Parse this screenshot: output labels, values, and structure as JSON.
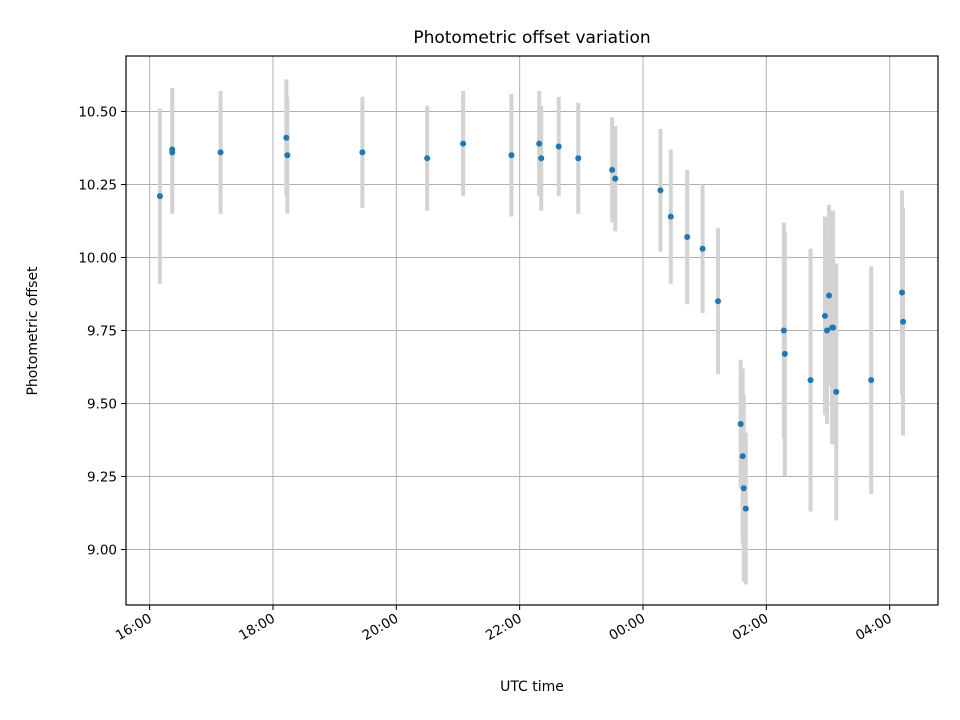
{
  "chart_data": {
    "type": "scatter",
    "title": "Photometric offset variation",
    "xlabel": "UTC time",
    "ylabel": "Photometric offset",
    "x_axis": {
      "kind": "time",
      "ticks": [
        "16:00",
        "18:00",
        "20:00",
        "22:00",
        "00:00",
        "02:00",
        "04:00"
      ],
      "range": [
        "15:37",
        "04:47"
      ]
    },
    "y_axis": {
      "ticks": [
        "9.00",
        "9.25",
        "9.50",
        "9.75",
        "10.00",
        "10.25",
        "10.50"
      ],
      "range": [
        8.81,
        10.69
      ]
    },
    "grid": true,
    "error_bar_color": "#d3d3d3",
    "marker_color": "#1f77b4",
    "points": [
      {
        "t": "16:10",
        "y": 10.21,
        "err": 0.3
      },
      {
        "t": "16:22",
        "y": 10.37,
        "err": 0.21
      },
      {
        "t": "16:22",
        "y": 10.36,
        "err": 0.21
      },
      {
        "t": "17:09",
        "y": 10.36,
        "err": 0.21
      },
      {
        "t": "18:13",
        "y": 10.41,
        "err": 0.2
      },
      {
        "t": "18:14",
        "y": 10.35,
        "err": 0.2
      },
      {
        "t": "19:27",
        "y": 10.36,
        "err": 0.19
      },
      {
        "t": "20:30",
        "y": 10.34,
        "err": 0.18
      },
      {
        "t": "21:05",
        "y": 10.39,
        "err": 0.18
      },
      {
        "t": "21:52",
        "y": 10.35,
        "err": 0.21
      },
      {
        "t": "22:19",
        "y": 10.39,
        "err": 0.18
      },
      {
        "t": "22:21",
        "y": 10.34,
        "err": 0.18
      },
      {
        "t": "22:38",
        "y": 10.38,
        "err": 0.17
      },
      {
        "t": "22:57",
        "y": 10.34,
        "err": 0.19
      },
      {
        "t": "23:30",
        "y": 10.3,
        "err": 0.18
      },
      {
        "t": "23:33",
        "y": 10.27,
        "err": 0.18
      },
      {
        "t": "00:17",
        "y": 10.23,
        "err": 0.21
      },
      {
        "t": "00:27",
        "y": 10.14,
        "err": 0.23
      },
      {
        "t": "00:43",
        "y": 10.07,
        "err": 0.23
      },
      {
        "t": "00:58",
        "y": 10.03,
        "err": 0.22
      },
      {
        "t": "01:13",
        "y": 9.85,
        "err": 0.25
      },
      {
        "t": "01:35",
        "y": 9.43,
        "err": 0.22
      },
      {
        "t": "01:37",
        "y": 9.32,
        "err": 0.3
      },
      {
        "t": "01:38",
        "y": 9.21,
        "err": 0.32
      },
      {
        "t": "01:40",
        "y": 9.14,
        "err": 0.26
      },
      {
        "t": "02:17",
        "y": 9.75,
        "err": 0.37
      },
      {
        "t": "02:18",
        "y": 9.67,
        "err": 0.42
      },
      {
        "t": "02:43",
        "y": 9.58,
        "err": 0.45
      },
      {
        "t": "02:57",
        "y": 9.8,
        "err": 0.34
      },
      {
        "t": "02:59",
        "y": 9.75,
        "err": 0.32
      },
      {
        "t": "03:01",
        "y": 9.87,
        "err": 0.31
      },
      {
        "t": "03:04",
        "y": 9.76,
        "err": 0.4
      },
      {
        "t": "03:05",
        "y": 9.76,
        "err": 0.4
      },
      {
        "t": "03:08",
        "y": 9.54,
        "err": 0.44
      },
      {
        "t": "03:42",
        "y": 9.58,
        "err": 0.39
      },
      {
        "t": "04:12",
        "y": 9.88,
        "err": 0.35
      },
      {
        "t": "04:13",
        "y": 9.78,
        "err": 0.39
      }
    ]
  }
}
